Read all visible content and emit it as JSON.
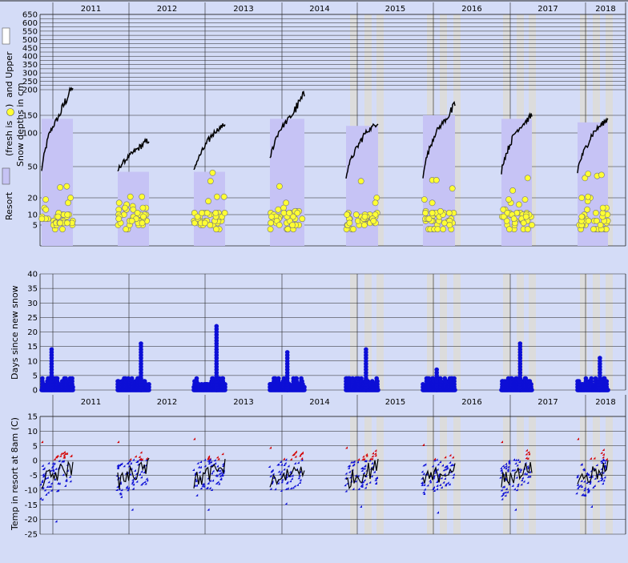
{
  "colors": {
    "background": "#d4dcf7",
    "grid": "#000000",
    "season_fill": "#c6c3f5",
    "missing_band": "#dcdcdc",
    "fresh_snow": "#ffff33",
    "days_since_snow": "#0d0fd6",
    "cold_temp": "#0d0fd6",
    "warm_temp": "#d40000",
    "line": "#000000"
  },
  "chart_data": [
    {
      "type": "area",
      "title": "",
      "ylabel_lines": [
        "Resort",
        "(fresh is",
        ")",
        "and Upper",
        "Snow depths in cm"
      ],
      "year_labels": [
        "2011",
        "2012",
        "2013",
        "2014",
        "2015",
        "2016",
        "2017",
        "2018"
      ],
      "ytick_labels": [
        "650",
        "600",
        "550",
        "500",
        "450",
        "400",
        "350",
        "300",
        "250",
        "200",
        "150",
        "100",
        "50",
        "20",
        "10",
        "5"
      ],
      "ytick_values": [
        650,
        600,
        550,
        500,
        450,
        400,
        350,
        300,
        250,
        200,
        150,
        100,
        50,
        20,
        10,
        5
      ],
      "legend": [
        {
          "label": "Upper",
          "swatch": "white"
        },
        {
          "label": "fresh",
          "swatch": "yellow-circle"
        },
        {
          "label": "Resort",
          "swatch": "lavender"
        }
      ],
      "seasons": [
        {
          "year": 2011,
          "upper_start": 45,
          "upper_end": 210,
          "resort_level": 140
        },
        {
          "year": 2012,
          "upper_start": 45,
          "upper_end": 90,
          "resort_level": 45
        },
        {
          "year": 2013,
          "upper_start": 45,
          "upper_end": 125,
          "resort_level": 45
        },
        {
          "year": 2014,
          "upper_start": 60,
          "upper_end": 190,
          "resort_level": 140
        },
        {
          "year": 2015,
          "upper_start": 40,
          "upper_end": 130,
          "resort_level": 120
        },
        {
          "year": 2016,
          "upper_start": 40,
          "upper_end": 170,
          "resort_level": 150
        },
        {
          "year": 2017,
          "upper_start": 45,
          "upper_end": 150,
          "resort_level": 140
        },
        {
          "year": 2018,
          "upper_start": 45,
          "upper_end": 140,
          "resort_level": 130
        }
      ]
    },
    {
      "type": "scatter",
      "title": "",
      "ylabel": "Days since new snow",
      "ylim": [
        0,
        40
      ],
      "ytick_labels": [
        "40",
        "35",
        "30",
        "25",
        "20",
        "15",
        "10",
        "5",
        "0"
      ],
      "season_max_days": [
        14,
        16,
        22,
        13,
        14,
        7,
        16,
        11
      ]
    },
    {
      "type": "scatter",
      "title": "",
      "ylabel": "Temp in resort at 8am (C)",
      "ylim": [
        -25,
        15
      ],
      "ytick_labels": [
        "15",
        "10",
        "5",
        "0",
        "-5",
        "-10",
        "-15",
        "-20",
        "-25"
      ],
      "year_labels": [
        "2011",
        "2012",
        "2013",
        "2014",
        "2015",
        "2016",
        "2017",
        "2018"
      ],
      "season_max_temp": [
        6,
        6,
        7,
        4,
        4,
        5,
        6,
        7
      ],
      "season_min_temp": [
        -21,
        -17,
        -17,
        -15,
        -16,
        -18,
        -17,
        -16
      ]
    }
  ]
}
